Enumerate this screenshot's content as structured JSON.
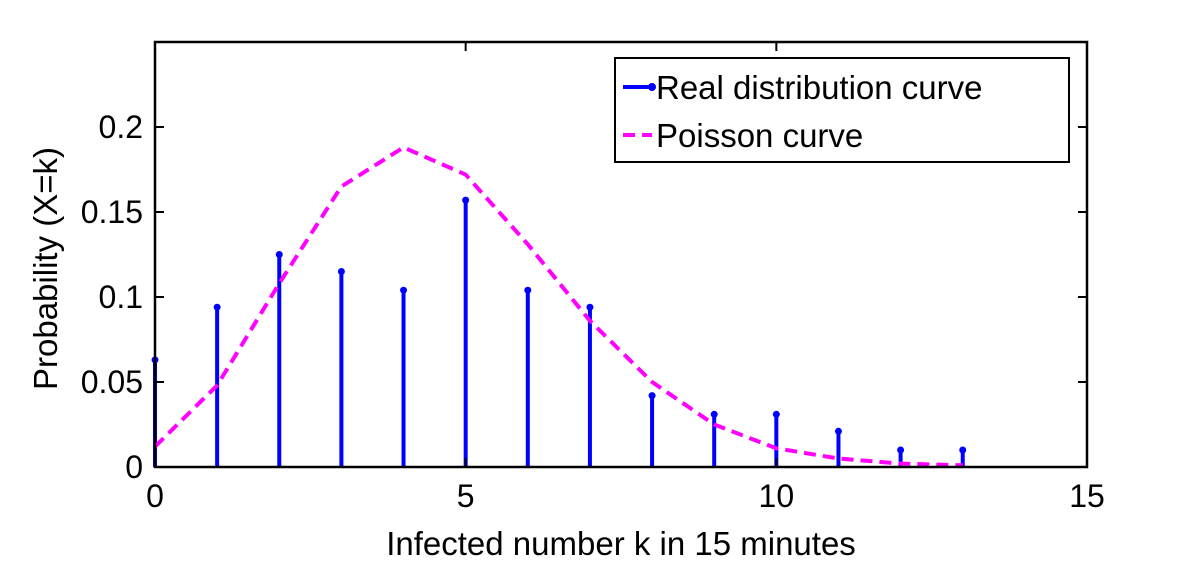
{
  "chart_data": {
    "type": "line",
    "xlabel": "Infected number k in 15 minutes",
    "ylabel": "Probability (X=k)",
    "xlim": [
      0,
      15
    ],
    "ylim": [
      0,
      0.25
    ],
    "x_ticks": [
      {
        "value": 0,
        "label": "0"
      },
      {
        "value": 5,
        "label": "5"
      },
      {
        "value": 10,
        "label": "10"
      },
      {
        "value": 15,
        "label": "15"
      }
    ],
    "y_ticks": [
      {
        "value": 0,
        "label": "0"
      },
      {
        "value": 0.05,
        "label": "0.05"
      },
      {
        "value": 0.1,
        "label": "0.1"
      },
      {
        "value": 0.15,
        "label": "0.15"
      },
      {
        "value": 0.2,
        "label": "0.2"
      }
    ],
    "grid": false,
    "legend_position": "top-right",
    "series": [
      {
        "name": "Real distribution curve",
        "type": "stem",
        "color": "#0000ff",
        "x": [
          0,
          1,
          2,
          3,
          4,
          5,
          6,
          7,
          8,
          9,
          10,
          11,
          12,
          13
        ],
        "values": [
          0.063,
          0.094,
          0.125,
          0.115,
          0.104,
          0.157,
          0.104,
          0.094,
          0.042,
          0.031,
          0.031,
          0.021,
          0.01,
          0.01
        ]
      },
      {
        "name": "Poisson curve",
        "type": "line",
        "style": "dashed",
        "color": "#ff00ff",
        "x": [
          0,
          1,
          2,
          3,
          4,
          5,
          6,
          7,
          8,
          9,
          10,
          11,
          12,
          13
        ],
        "values": [
          0.012,
          0.048,
          0.108,
          0.165,
          0.188,
          0.172,
          0.131,
          0.086,
          0.05,
          0.025,
          0.011,
          0.005,
          0.002,
          0.001
        ]
      }
    ]
  }
}
